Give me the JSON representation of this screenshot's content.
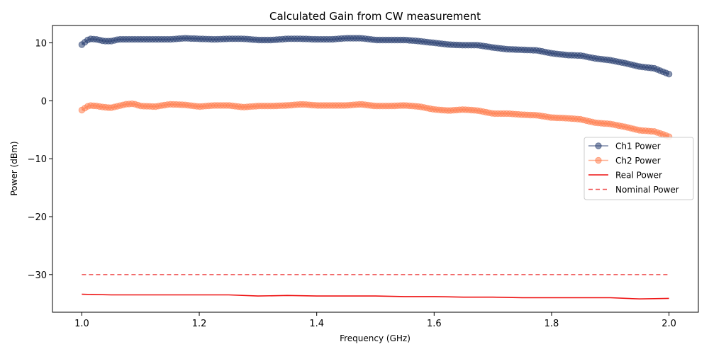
{
  "chart_data": {
    "type": "line",
    "title": "Calculated Gain from CW measurement",
    "xlabel": "Frequency (GHz)",
    "ylabel": "Power (dBm)",
    "xlim": [
      0.95,
      2.05
    ],
    "ylim": [
      -36.5,
      13
    ],
    "xticks": [
      1.0,
      1.2,
      1.4,
      1.6,
      1.8,
      2.0
    ],
    "xtick_labels": [
      "1.0",
      "1.2",
      "1.4",
      "1.6",
      "1.8",
      "2.0"
    ],
    "yticks": [
      10,
      0,
      -10,
      -20,
      -30
    ],
    "ytick_labels": [
      "10",
      "0",
      "−10",
      "−20",
      "−30"
    ],
    "grid": false,
    "legend_position": "center-right",
    "series": [
      {
        "name": "Ch1 Power",
        "style": "line-marker",
        "color": "#2b4172",
        "x": [
          1.0,
          1.0125,
          1.025,
          1.0375,
          1.05,
          1.0625,
          1.075,
          1.0875,
          1.1,
          1.125,
          1.15,
          1.175,
          1.2,
          1.225,
          1.25,
          1.275,
          1.3,
          1.325,
          1.35,
          1.375,
          1.4,
          1.425,
          1.45,
          1.475,
          1.5,
          1.525,
          1.55,
          1.575,
          1.6,
          1.625,
          1.65,
          1.675,
          1.7,
          1.725,
          1.75,
          1.775,
          1.8,
          1.825,
          1.85,
          1.875,
          1.9,
          1.925,
          1.95,
          1.975,
          1.99,
          2.0
        ],
        "y": [
          9.7,
          10.7,
          10.6,
          10.3,
          10.3,
          10.6,
          10.6,
          10.6,
          10.6,
          10.6,
          10.6,
          10.8,
          10.7,
          10.6,
          10.7,
          10.7,
          10.5,
          10.5,
          10.7,
          10.7,
          10.6,
          10.6,
          10.8,
          10.8,
          10.5,
          10.5,
          10.5,
          10.3,
          10.0,
          9.7,
          9.6,
          9.6,
          9.2,
          8.9,
          8.8,
          8.7,
          8.2,
          7.9,
          7.8,
          7.3,
          7.0,
          6.5,
          5.9,
          5.6,
          5.0,
          4.6
        ]
      },
      {
        "name": "Ch2 Power",
        "style": "line-marker",
        "color": "#ff7f50",
        "x": [
          1.0,
          1.0125,
          1.025,
          1.0375,
          1.05,
          1.0625,
          1.075,
          1.0875,
          1.1,
          1.125,
          1.15,
          1.175,
          1.2,
          1.225,
          1.25,
          1.275,
          1.3,
          1.325,
          1.35,
          1.375,
          1.4,
          1.425,
          1.45,
          1.475,
          1.5,
          1.525,
          1.55,
          1.575,
          1.6,
          1.625,
          1.65,
          1.675,
          1.7,
          1.725,
          1.75,
          1.775,
          1.8,
          1.825,
          1.85,
          1.875,
          1.9,
          1.925,
          1.95,
          1.975,
          1.99,
          2.0
        ],
        "y": [
          -1.6,
          -0.8,
          -0.9,
          -1.1,
          -1.2,
          -0.9,
          -0.6,
          -0.5,
          -0.9,
          -1.0,
          -0.6,
          -0.7,
          -1.0,
          -0.8,
          -0.8,
          -1.1,
          -0.9,
          -0.9,
          -0.8,
          -0.6,
          -0.8,
          -0.8,
          -0.8,
          -0.6,
          -0.9,
          -0.9,
          -0.8,
          -1.0,
          -1.5,
          -1.7,
          -1.5,
          -1.7,
          -2.2,
          -2.2,
          -2.4,
          -2.5,
          -2.9,
          -3.0,
          -3.2,
          -3.8,
          -4.0,
          -4.5,
          -5.1,
          -5.3,
          -5.8,
          -6.2
        ]
      },
      {
        "name": "Real Power",
        "style": "solid",
        "color": "#ee1111",
        "x": [
          1.0,
          1.05,
          1.1,
          1.15,
          1.2,
          1.25,
          1.3,
          1.35,
          1.4,
          1.45,
          1.5,
          1.55,
          1.6,
          1.65,
          1.7,
          1.75,
          1.8,
          1.85,
          1.9,
          1.95,
          2.0
        ],
        "y": [
          -33.4,
          -33.5,
          -33.5,
          -33.5,
          -33.5,
          -33.5,
          -33.7,
          -33.6,
          -33.7,
          -33.7,
          -33.7,
          -33.8,
          -33.8,
          -33.9,
          -33.9,
          -34.0,
          -34.0,
          -34.0,
          -34.0,
          -34.2,
          -34.1
        ]
      },
      {
        "name": "Nominal Power",
        "style": "dashed",
        "color": "#f06060",
        "x": [
          1.0,
          2.0
        ],
        "y": [
          -30,
          -30
        ]
      }
    ]
  }
}
